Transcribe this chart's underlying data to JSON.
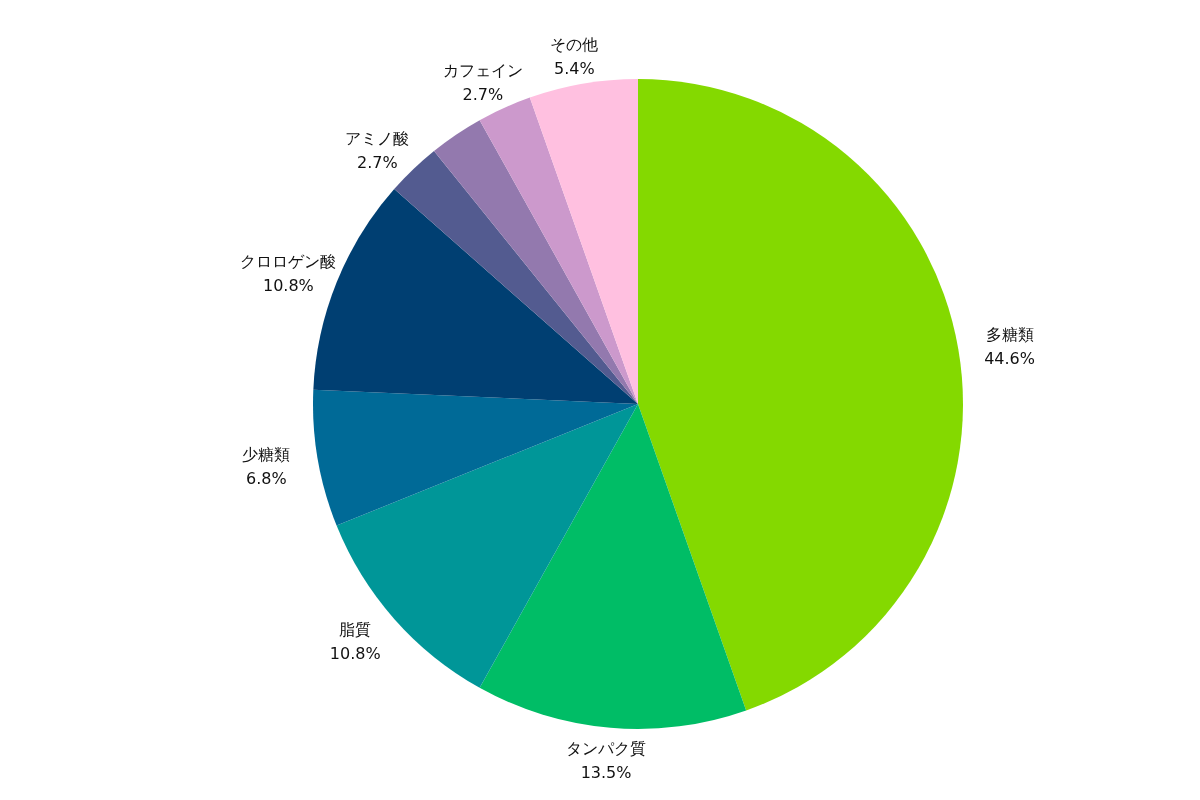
{
  "chart_data": {
    "type": "pie",
    "categories": [
      "多糖類",
      "タンパク質",
      "脂質",
      "少糖類",
      "クロロゲン酸",
      "アミノ酸",
      null,
      "カフェイン",
      "その他"
    ],
    "values": [
      44.6,
      13.5,
      10.8,
      6.8,
      10.8,
      2.7,
      2.7,
      2.7,
      5.4
    ],
    "value_labels": [
      "44.6%",
      "13.5%",
      "10.8%",
      "6.8%",
      "10.8%",
      "2.7%",
      null,
      "2.7%",
      "5.4%"
    ],
    "colors": [
      "#84d900",
      "#00bd66",
      "#009698",
      "#006a97",
      "#003f72",
      "#535b90",
      "#9379ae",
      "#cc99cc",
      "#ffc0e0"
    ]
  }
}
